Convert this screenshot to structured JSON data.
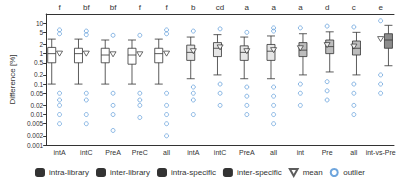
{
  "chart_data": {
    "type": "boxplot",
    "y_label": "Difference [%]",
    "log": "y",
    "grid": false,
    "legend": "bottom",
    "ylim": [
      0.001,
      20
    ],
    "yticks": [
      0.001,
      0.002,
      0.005,
      0.01,
      0.02,
      0.05,
      0.1,
      0.2,
      0.5,
      1,
      2,
      5,
      10
    ],
    "categories": [
      "intA",
      "intC",
      "PreA",
      "PreC",
      "all",
      "intA",
      "intC",
      "PreA",
      "all",
      "int",
      "Pre",
      "all",
      "int-vs-Pre"
    ],
    "letters": [
      "f",
      "bf",
      "bf",
      "f",
      "f",
      "b",
      "cd",
      "a",
      "a",
      "a",
      "d",
      "c",
      "e"
    ],
    "series": [
      {
        "name": "intra-library",
        "color": "#ffffff",
        "boxes": [
          [
            0.1,
            0.5,
            1.0,
            1.6,
            3.0
          ],
          [
            0.1,
            0.5,
            1.0,
            1.5,
            3.0
          ],
          [
            0.1,
            0.5,
            0.9,
            1.5,
            2.8
          ],
          [
            0.1,
            0.45,
            0.9,
            1.5,
            2.8
          ],
          [
            0.1,
            0.5,
            1.0,
            1.5,
            3.0
          ],
          null,
          null,
          null,
          null,
          null,
          null,
          null,
          null
        ]
      },
      {
        "name": "inter-library",
        "color": "#e6e6e6",
        "boxes": [
          null,
          null,
          null,
          null,
          null,
          [
            0.15,
            0.6,
            1.1,
            1.9,
            3.5
          ],
          [
            0.2,
            0.8,
            1.5,
            2.3,
            4.2
          ],
          [
            0.15,
            0.6,
            1.1,
            1.8,
            3.5
          ],
          [
            0.15,
            0.6,
            1.2,
            2.0,
            3.8
          ],
          null,
          null,
          null,
          null
        ]
      },
      {
        "name": "intra-specific",
        "color": "#bdbdbd",
        "boxes": [
          null,
          null,
          null,
          null,
          null,
          null,
          null,
          null,
          null,
          [
            0.2,
            0.8,
            1.3,
            2.3,
            4.5
          ],
          [
            0.25,
            1.0,
            1.7,
            2.8,
            5.2
          ],
          [
            0.2,
            0.9,
            1.5,
            2.6,
            5.0
          ],
          null
        ]
      },
      {
        "name": "inter-specific",
        "color": "#8c8c8c",
        "boxes": [
          null,
          null,
          null,
          null,
          null,
          null,
          null,
          null,
          null,
          null,
          null,
          null,
          [
            0.4,
            1.5,
            2.8,
            4.5,
            8.5
          ]
        ]
      }
    ],
    "means": {
      "name": "mean",
      "marker": "triangle-down",
      "color": "#333333",
      "values": [
        1.0,
        1.0,
        0.95,
        0.95,
        1.0,
        1.2,
        1.6,
        1.2,
        1.3,
        1.5,
        1.9,
        1.7,
        3.0
      ]
    },
    "outliers": {
      "name": "outlier",
      "marker": "circle",
      "color": "#4a8fd4",
      "values": [
        [
          0.05,
          0.03,
          0.02,
          0.01,
          0.005,
          4.5,
          6
        ],
        [
          0.05,
          0.03,
          0.01,
          0.005,
          4.2,
          5.5
        ],
        [
          0.05,
          0.02,
          0.01,
          0.003,
          4.0
        ],
        [
          0.05,
          0.03,
          0.02,
          0.008,
          4.0
        ],
        [
          0.05,
          0.02,
          0.01,
          0.005,
          0.002,
          4.5,
          6
        ],
        [
          0.08,
          0.05,
          0.03,
          0.01,
          5.5
        ],
        [
          0.1,
          0.05,
          0.02,
          6.5
        ],
        [
          0.08,
          0.04,
          0.02,
          0.01,
          5.0
        ],
        [
          0.08,
          0.04,
          0.02,
          0.01,
          0.005,
          5.5,
          7
        ],
        [
          0.1,
          0.05,
          0.02,
          7.0
        ],
        [
          0.12,
          0.06,
          0.03,
          8.0
        ],
        [
          0.1,
          0.05,
          0.02,
          0.01,
          7.5
        ],
        [
          0.2,
          0.1,
          0.05,
          12
        ]
      ]
    }
  }
}
